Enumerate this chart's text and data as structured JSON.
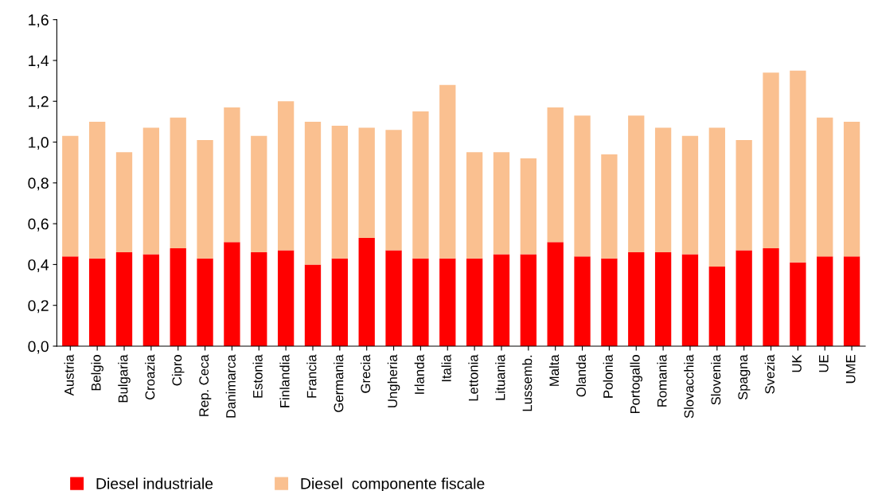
{
  "chart_data": {
    "type": "bar",
    "stacked": true,
    "categories": [
      "Austria",
      "Belgio",
      "Bulgaria",
      "Croazia",
      "Cipro",
      "Rep. Ceca",
      "Danimarca",
      "Estonia",
      "Finlandia",
      "Francia",
      "Germania",
      "Grecia",
      "Ungheria",
      "Irlanda",
      "Italia",
      "Lettonia",
      "Lituania",
      "Lussemb.",
      "Malta",
      "Olanda",
      "Polonia",
      "Portogallo",
      "Romania",
      "Slovacchia",
      "Slovenia",
      "Spagna",
      "Svezia",
      "UK",
      "UE",
      "UME"
    ],
    "series": [
      {
        "name": "Diesel industriale",
        "color": "#ff0000",
        "values": [
          0.44,
          0.43,
          0.46,
          0.45,
          0.48,
          0.43,
          0.51,
          0.46,
          0.47,
          0.4,
          0.43,
          0.53,
          0.47,
          0.43,
          0.43,
          0.43,
          0.45,
          0.45,
          0.51,
          0.44,
          0.43,
          0.46,
          0.46,
          0.45,
          0.39,
          0.47,
          0.48,
          0.41,
          0.44,
          0.44
        ]
      },
      {
        "name": "Diesel  componente fiscale",
        "color": "#fac090",
        "values": [
          0.59,
          0.67,
          0.49,
          0.62,
          0.64,
          0.58,
          0.66,
          0.57,
          0.73,
          0.7,
          0.65,
          0.54,
          0.59,
          0.72,
          0.85,
          0.52,
          0.5,
          0.47,
          0.66,
          0.69,
          0.51,
          0.67,
          0.61,
          0.58,
          0.68,
          0.54,
          0.86,
          0.94,
          0.68,
          0.66
        ]
      }
    ],
    "ylim": [
      0,
      1.6
    ],
    "yticks": [
      {
        "value": 0,
        "label": "0,0"
      },
      {
        "value": 0.2,
        "label": "0,2"
      },
      {
        "value": 0.4,
        "label": "0,4"
      },
      {
        "value": 0.6,
        "label": "0,6"
      },
      {
        "value": 0.8,
        "label": "0,8"
      },
      {
        "value": 1.0,
        "label": "1,0"
      },
      {
        "value": 1.2,
        "label": "1,2"
      },
      {
        "value": 1.4,
        "label": "1,4"
      },
      {
        "value": 1.6,
        "label": "1,6"
      }
    ],
    "grid": false,
    "legend": "bottom left"
  }
}
